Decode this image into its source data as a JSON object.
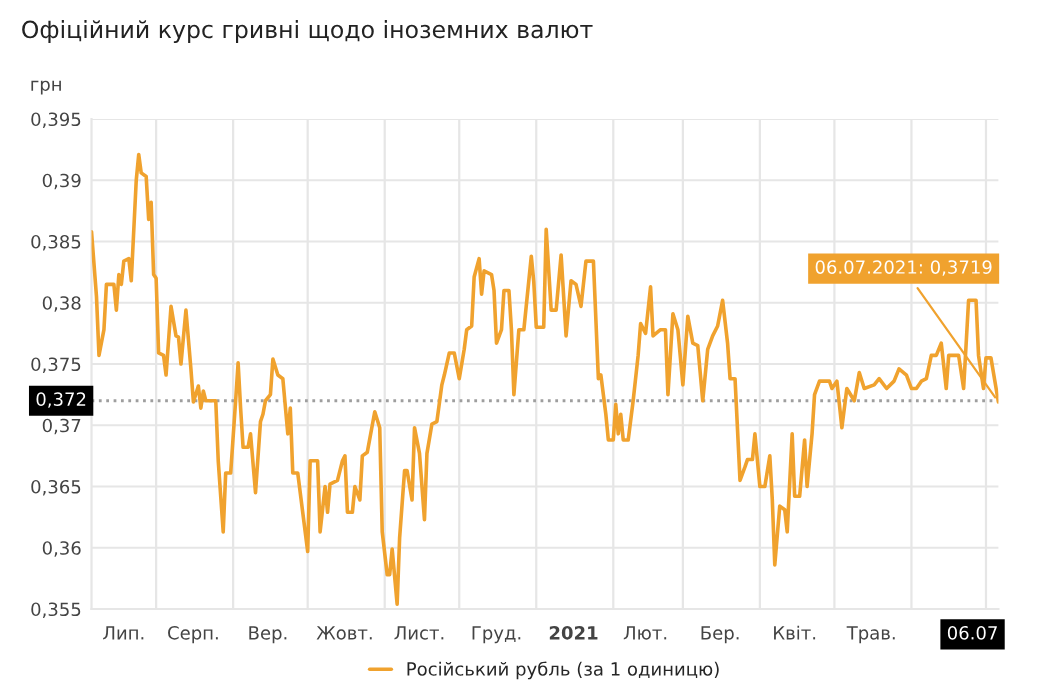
{
  "chart_data": {
    "type": "line",
    "title": "Офіційний курс гривні щодо іноземних валют",
    "ylabel": "грн",
    "x": [
      "2020-07-06",
      "2020-07-08",
      "2020-07-09",
      "2020-07-11",
      "2020-07-12",
      "2020-07-15",
      "2020-07-16",
      "2020-07-17",
      "2020-07-18",
      "2020-07-19",
      "2020-07-21",
      "2020-07-22",
      "2020-07-24",
      "2020-07-25",
      "2020-07-26",
      "2020-07-28",
      "2020-07-29",
      "2020-07-30",
      "2020-07-31",
      "2020-08-01",
      "2020-08-02",
      "2020-08-04",
      "2020-08-05",
      "2020-08-07",
      "2020-08-09",
      "2020-08-10",
      "2020-08-11",
      "2020-08-13",
      "2020-08-15",
      "2020-08-16",
      "2020-08-18",
      "2020-08-19",
      "2020-08-20",
      "2020-08-21",
      "2020-08-25",
      "2020-08-26",
      "2020-08-28",
      "2020-08-29",
      "2020-08-31",
      "2020-09-02",
      "2020-09-03",
      "2020-09-04",
      "2020-09-05",
      "2020-09-07",
      "2020-09-08",
      "2020-09-10",
      "2020-09-12",
      "2020-09-13",
      "2020-09-14",
      "2020-09-16",
      "2020-09-17",
      "2020-09-19",
      "2020-09-21",
      "2020-09-23",
      "2020-09-24",
      "2020-09-25",
      "2020-09-27",
      "2020-09-29",
      "2020-10-01",
      "2020-10-02",
      "2020-10-05",
      "2020-10-06",
      "2020-10-08",
      "2020-10-09",
      "2020-10-10",
      "2020-10-13",
      "2020-10-15",
      "2020-10-16",
      "2020-10-17",
      "2020-10-19",
      "2020-10-20",
      "2020-10-22",
      "2020-10-23",
      "2020-10-25",
      "2020-10-28",
      "2020-10-30",
      "2020-10-31",
      "2020-11-02",
      "2020-11-03",
      "2020-11-04",
      "2020-11-06",
      "2020-11-07",
      "2020-11-09",
      "2020-11-10",
      "2020-11-12",
      "2020-11-13",
      "2020-11-15",
      "2020-11-16",
      "2020-11-17",
      "2020-11-18",
      "2020-11-20",
      "2020-11-22",
      "2020-11-24",
      "2020-11-25",
      "2020-11-27",
      "2020-11-29",
      "2020-12-01",
      "2020-12-03",
      "2020-12-04",
      "2020-12-06",
      "2020-12-07",
      "2020-12-09",
      "2020-12-10",
      "2020-12-11",
      "2020-12-14",
      "2020-12-15",
      "2020-12-16",
      "2020-12-18",
      "2020-12-19",
      "2020-12-21",
      "2020-12-22",
      "2020-12-23",
      "2020-12-25",
      "2020-12-27",
      "2020-12-30",
      "2020-12-31",
      "2021-01-01",
      "2021-01-04",
      "2021-01-05",
      "2021-01-07",
      "2021-01-09",
      "2021-01-11",
      "2021-01-13",
      "2021-01-15",
      "2021-01-17",
      "2021-01-19",
      "2021-01-21",
      "2021-01-24",
      "2021-01-26",
      "2021-01-27",
      "2021-01-29",
      "2021-01-30",
      "2021-02-01",
      "2021-02-02",
      "2021-02-03",
      "2021-02-04",
      "2021-02-05",
      "2021-02-07",
      "2021-02-09",
      "2021-02-11",
      "2021-02-12",
      "2021-02-14",
      "2021-02-16",
      "2021-02-17",
      "2021-02-20",
      "2021-02-22",
      "2021-02-23",
      "2021-02-25",
      "2021-02-27",
      "2021-03-01",
      "2021-03-03",
      "2021-03-05",
      "2021-03-07",
      "2021-03-09",
      "2021-03-11",
      "2021-03-13",
      "2021-03-15",
      "2021-03-17",
      "2021-03-19",
      "2021-03-20",
      "2021-03-22",
      "2021-03-24",
      "2021-03-26",
      "2021-03-27",
      "2021-03-29",
      "2021-03-30",
      "2021-04-01",
      "2021-04-03",
      "2021-04-05",
      "2021-04-06",
      "2021-04-07",
      "2021-04-09",
      "2021-04-11",
      "2021-04-12",
      "2021-04-14",
      "2021-04-15",
      "2021-04-17",
      "2021-04-19",
      "2021-04-20",
      "2021-04-22",
      "2021-04-23",
      "2021-04-25",
      "2021-04-29",
      "2021-04-30",
      "2021-05-02",
      "2021-05-04",
      "2021-05-06",
      "2021-05-09",
      "2021-05-11",
      "2021-05-13",
      "2021-05-17",
      "2021-05-19",
      "2021-05-22",
      "2021-05-25",
      "2021-05-27",
      "2021-05-30",
      "2021-06-01",
      "2021-06-03",
      "2021-06-05",
      "2021-06-07",
      "2021-06-09",
      "2021-06-11",
      "2021-06-13",
      "2021-06-15",
      "2021-06-16",
      "2021-06-18",
      "2021-06-20",
      "2021-06-22",
      "2021-06-24",
      "2021-06-27",
      "2021-06-28",
      "2021-06-30",
      "2021-07-01",
      "2021-07-03",
      "2021-07-06"
    ],
    "series": [
      {
        "name": "Російський рубль (за 1 одиницю)",
        "color": "#f0a22e",
        "values": [
          0.3858,
          0.3805,
          0.3757,
          0.3778,
          0.3815,
          0.3815,
          0.3794,
          0.3823,
          0.3815,
          0.3834,
          0.3836,
          0.3818,
          0.39,
          0.3921,
          0.3906,
          0.3903,
          0.3868,
          0.3882,
          0.3823,
          0.382,
          0.3759,
          0.3757,
          0.3741,
          0.3797,
          0.3773,
          0.3772,
          0.375,
          0.3794,
          0.3746,
          0.3719,
          0.3732,
          0.3714,
          0.3728,
          0.372,
          0.372,
          0.3671,
          0.3613,
          0.3661,
          0.3661,
          0.372,
          0.3751,
          0.3714,
          0.3682,
          0.3682,
          0.3693,
          0.3645,
          0.3703,
          0.3709,
          0.372,
          0.3725,
          0.3754,
          0.3741,
          0.3738,
          0.3693,
          0.3714,
          0.3661,
          0.3661,
          0.3629,
          0.3597,
          0.3671,
          0.3671,
          0.3613,
          0.365,
          0.3629,
          0.3652,
          0.3655,
          0.3671,
          0.3675,
          0.3629,
          0.3629,
          0.365,
          0.3639,
          0.3675,
          0.3678,
          0.3711,
          0.3698,
          0.3613,
          0.3578,
          0.3578,
          0.3599,
          0.3554,
          0.3608,
          0.3663,
          0.3663,
          0.3639,
          0.3698,
          0.3677,
          0.365,
          0.3623,
          0.3677,
          0.3701,
          0.3703,
          0.3733,
          0.3741,
          0.3759,
          0.3759,
          0.3738,
          0.3762,
          0.3778,
          0.3781,
          0.3821,
          0.3836,
          0.3807,
          0.3826,
          0.3823,
          0.381,
          0.3767,
          0.3778,
          0.381,
          0.381,
          0.3778,
          0.3725,
          0.3778,
          0.3778,
          0.3838,
          0.3817,
          0.378,
          0.378,
          0.386,
          0.3794,
          0.3794,
          0.3839,
          0.3773,
          0.3818,
          0.3815,
          0.3797,
          0.3834,
          0.3834,
          0.3738,
          0.3741,
          0.3709,
          0.3688,
          0.3688,
          0.3717,
          0.3693,
          0.3709,
          0.3688,
          0.3688,
          0.372,
          0.3757,
          0.3783,
          0.3775,
          0.3813,
          0.3773,
          0.3778,
          0.3778,
          0.3725,
          0.3791,
          0.3778,
          0.3733,
          0.3789,
          0.3767,
          0.3765,
          0.372,
          0.3762,
          0.3773,
          0.3781,
          0.3802,
          0.3767,
          0.3738,
          0.3738,
          0.3655,
          0.3666,
          0.3672,
          0.3672,
          0.3693,
          0.365,
          0.365,
          0.3675,
          0.3639,
          0.3586,
          0.3634,
          0.3631,
          0.3613,
          0.3693,
          0.3642,
          0.3642,
          0.3688,
          0.365,
          0.3693,
          0.3725,
          0.3736,
          0.3736,
          0.373,
          0.3736,
          0.3698,
          0.373,
          0.372,
          0.3743,
          0.373,
          0.3733,
          0.3738,
          0.373,
          0.3736,
          0.3746,
          0.3741,
          0.373,
          0.373,
          0.3736,
          0.3738,
          0.3757,
          0.3757,
          0.3767,
          0.373,
          0.3757,
          0.3757,
          0.3757,
          0.373,
          0.3802,
          0.3802,
          0.3757,
          0.373,
          0.3755,
          0.3755,
          0.3719
        ]
      }
    ],
    "xlim": [
      "2020-07-06",
      "2021-07-06"
    ],
    "xticks": [
      {
        "value": "2020-07-19",
        "label": "Лип."
      },
      {
        "value": "2020-08-01",
        "label": null
      },
      {
        "value": "2020-08-16",
        "label": "Серп."
      },
      {
        "value": "2020-09-01",
        "label": null
      },
      {
        "value": "2020-09-15",
        "label": "Вер."
      },
      {
        "value": "2020-10-01",
        "label": null
      },
      {
        "value": "2020-10-16",
        "label": "Жовт."
      },
      {
        "value": "2020-11-01",
        "label": null
      },
      {
        "value": "2020-11-15",
        "label": "Лист."
      },
      {
        "value": "2020-12-01",
        "label": null
      },
      {
        "value": "2020-12-16",
        "label": "Груд."
      },
      {
        "value": "2021-01-01",
        "label": null
      },
      {
        "value": "2021-01-16",
        "label": "2021"
      },
      {
        "value": "2021-02-01",
        "label": null
      },
      {
        "value": "2021-02-14",
        "label": "Лют."
      },
      {
        "value": "2021-03-01",
        "label": null
      },
      {
        "value": "2021-03-16",
        "label": "Бер."
      },
      {
        "value": "2021-04-01",
        "label": null
      },
      {
        "value": "2021-04-15",
        "label": "Квіт."
      },
      {
        "value": "2021-05-01",
        "label": null
      },
      {
        "value": "2021-05-16",
        "label": "Трав."
      },
      {
        "value": "2021-06-01",
        "label": null
      },
      {
        "value": "2021-07-01",
        "label": null
      },
      {
        "value": "2021-07-06",
        "label": "06.07"
      }
    ],
    "ylim": [
      0.355,
      0.395
    ],
    "yticks": [
      {
        "value": 0.355,
        "label": "0,355"
      },
      {
        "value": 0.36,
        "label": "0,36"
      },
      {
        "value": 0.365,
        "label": "0,365"
      },
      {
        "value": 0.37,
        "label": "0,37"
      },
      {
        "value": 0.375,
        "label": "0,375"
      },
      {
        "value": 0.38,
        "label": "0,38"
      },
      {
        "value": 0.385,
        "label": "0,385"
      },
      {
        "value": 0.39,
        "label": "0,39"
      },
      {
        "value": 0.395,
        "label": "0,395"
      }
    ],
    "ref_lines": [
      {
        "axis": "y",
        "value": 0.372,
        "label": "0,372",
        "color": "#9e9e9e",
        "line_style": "dotted"
      }
    ],
    "annotations": [
      {
        "text": "06.07.2021: 0,3719",
        "x": "2021-07-06",
        "y": 0.3719
      }
    ],
    "grid": true,
    "legend": "bottom",
    "marker": "none",
    "line_style": "solid"
  }
}
